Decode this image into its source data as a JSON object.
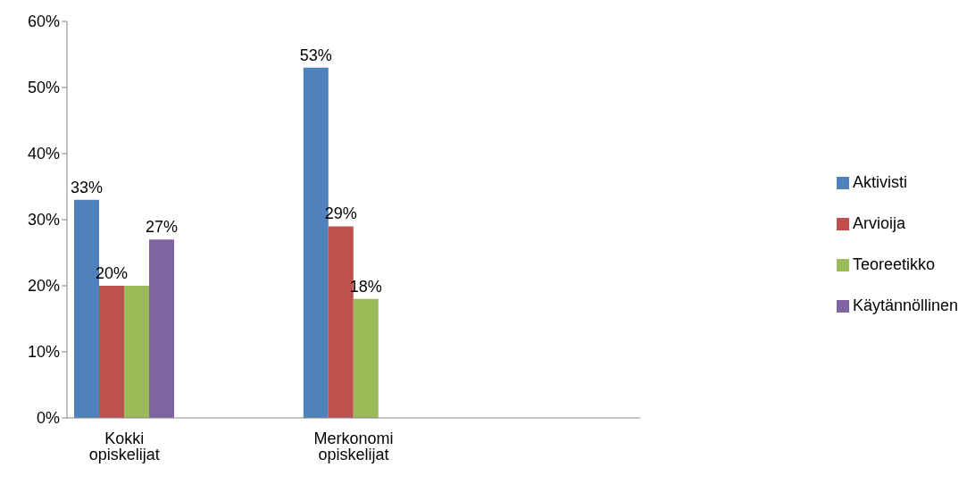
{
  "chart_data": {
    "type": "bar",
    "categories": [
      "Kokki opiskelijat",
      null,
      "Merkonomi opiskelijat",
      null,
      null
    ],
    "series": [
      {
        "name": "Aktivisti",
        "color": "#4f81bd",
        "values": [
          33,
          null,
          53,
          null,
          null
        ],
        "value_labels": [
          "33%",
          null,
          "53%",
          null,
          null
        ]
      },
      {
        "name": "Arvioija",
        "color": "#c0504d",
        "values": [
          20,
          null,
          29,
          null,
          null
        ],
        "value_labels": [
          "20%",
          null,
          "29%",
          null,
          null
        ]
      },
      {
        "name": "Teoreetikko",
        "color": "#9bbb59",
        "values": [
          20,
          null,
          18,
          null,
          null
        ],
        "value_labels": [
          null,
          null,
          "18%",
          null,
          null
        ]
      },
      {
        "name": "Käytännöllinen",
        "color": "#8064a2",
        "values": [
          27,
          null,
          null,
          null,
          null
        ],
        "value_labels": [
          "27%",
          null,
          null,
          null,
          null
        ]
      }
    ],
    "ylim": [
      0,
      60
    ],
    "yticks": [
      {
        "value": 0,
        "label": "0%"
      },
      {
        "value": 10,
        "label": "10%"
      },
      {
        "value": 20,
        "label": "20%"
      },
      {
        "value": 30,
        "label": "30%"
      },
      {
        "value": 40,
        "label": "40%"
      },
      {
        "value": 50,
        "label": "50%"
      },
      {
        "value": 60,
        "label": "60%"
      }
    ],
    "grid": false,
    "legend": "right"
  }
}
